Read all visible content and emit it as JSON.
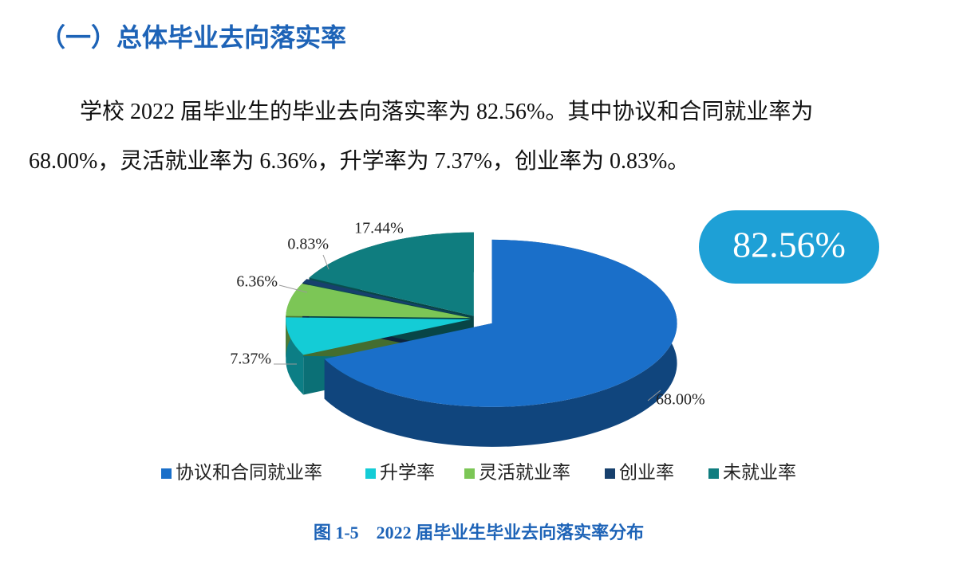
{
  "heading": "（一）总体毕业去向落实率",
  "paragraph": {
    "lines": [
      "学校 2022 届毕业生的毕业去向落实率为 82.56%。其中协议和合同就业率为",
      "68.00%，灵活就业率为 6.36%，升学率为 7.37%，创业率为 0.83%。"
    ]
  },
  "chart_data": {
    "type": "pie",
    "categories": [
      "协议和合同就业率",
      "升学率",
      "灵活就业率",
      "创业率",
      "未就业率"
    ],
    "values": [
      68.0,
      7.37,
      6.36,
      0.83,
      17.44
    ],
    "value_labels": [
      "68.00%",
      "7.37%",
      "6.36%",
      "0.83%",
      "17.44%"
    ],
    "colors": [
      "#1a6fc9",
      "#14ccd6",
      "#7cc656",
      "#17406d",
      "#0f7d7f"
    ],
    "annotation": "82.56%",
    "caption": "图 1-5　2022 届毕业生毕业去向落实率分布"
  }
}
